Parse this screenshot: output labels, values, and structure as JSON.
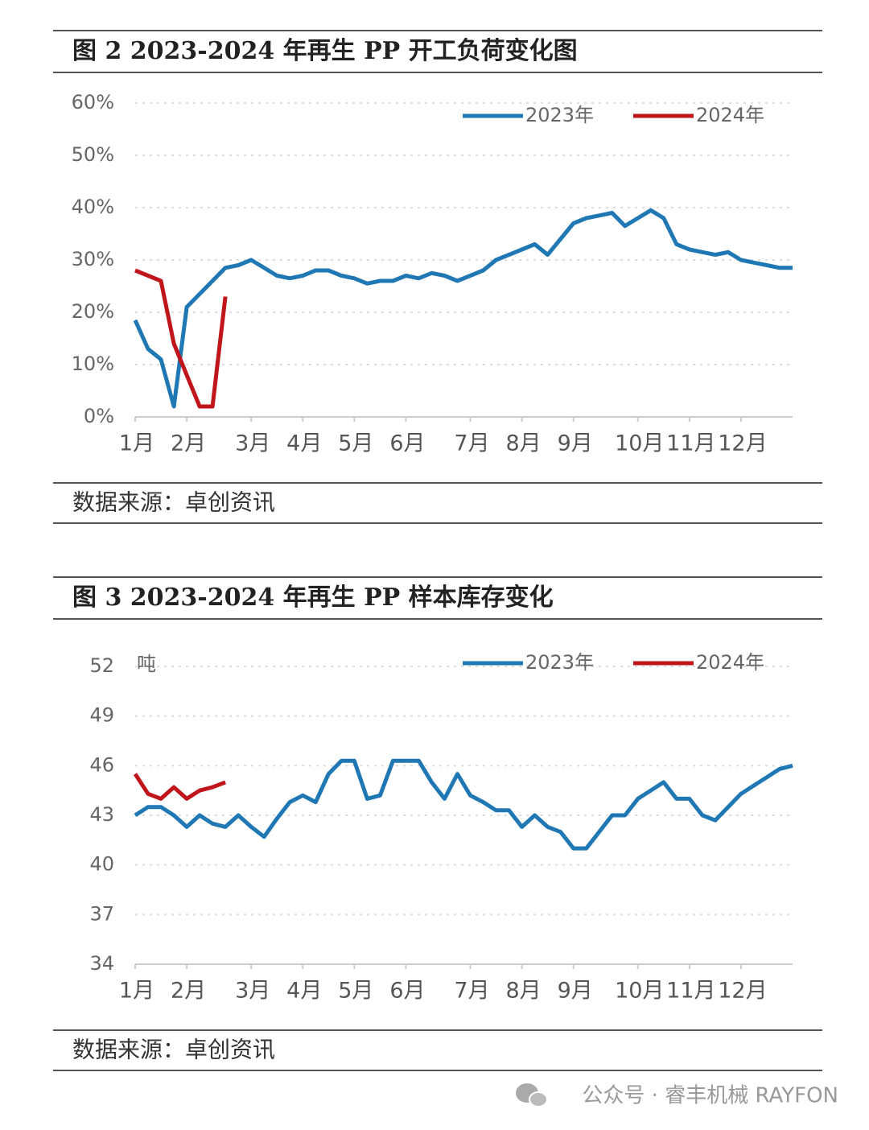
{
  "chart_data": [
    {
      "type": "line",
      "title": "图 2 2023-2024 年再生 PP 开工负荷变化图",
      "source": "数据来源：卓创资讯",
      "categories": [
        "1月",
        null,
        null,
        null,
        "2月",
        null,
        null,
        null,
        null,
        "3月",
        null,
        null,
        null,
        "4月",
        null,
        null,
        null,
        "5月",
        null,
        null,
        null,
        "6月",
        null,
        null,
        null,
        null,
        "7月",
        null,
        null,
        null,
        "8月",
        null,
        null,
        null,
        "9月",
        null,
        null,
        null,
        null,
        "10月",
        null,
        null,
        null,
        "11月",
        null,
        null,
        null,
        "12月",
        null,
        null,
        null,
        null
      ],
      "series": [
        {
          "name": "2023年",
          "color": "#1f77b4",
          "values": [
            18.5,
            13,
            11,
            2,
            21,
            23.5,
            26,
            28.5,
            29,
            30,
            28.5,
            27,
            26.5,
            27,
            28,
            28,
            27,
            26.5,
            25.5,
            26,
            26,
            27,
            26.5,
            27.5,
            27,
            26,
            27,
            28,
            30,
            31,
            32,
            33,
            31,
            34,
            37,
            38,
            38.5,
            39,
            36.5,
            38,
            39.5,
            38,
            33,
            32,
            31.5,
            31,
            31.5,
            30,
            29.5,
            29,
            28.5,
            28.5
          ]
        },
        {
          "name": "2024年",
          "color": "#c0161b",
          "values": [
            28,
            27,
            26,
            14,
            8,
            2,
            2,
            23,
            null,
            null,
            null,
            null,
            null,
            null,
            null,
            null,
            null,
            null,
            null,
            null,
            null,
            null,
            null,
            null,
            null,
            null,
            null,
            null,
            null,
            null,
            null,
            null,
            null,
            null,
            null,
            null,
            null,
            null,
            null,
            null,
            null,
            null,
            null,
            null,
            null,
            null,
            null,
            null,
            null,
            null,
            null,
            null
          ]
        }
      ],
      "ylim": [
        0,
        60
      ],
      "yticks": [
        {
          "value": 0,
          "label": "0%"
        },
        {
          "value": 10,
          "label": "10%"
        },
        {
          "value": 20,
          "label": "20%"
        },
        {
          "value": 30,
          "label": "30%"
        },
        {
          "value": 40,
          "label": "40%"
        },
        {
          "value": 50,
          "label": "50%"
        },
        {
          "value": 60,
          "label": "60%"
        }
      ],
      "grid": true,
      "legend": "upper right"
    },
    {
      "type": "line",
      "title": "图 3 2023-2024 年再生 PP 样本库存变化",
      "source": "数据来源：卓创资讯",
      "y_label": "吨",
      "categories": [
        "1月",
        null,
        null,
        null,
        "2月",
        null,
        null,
        null,
        null,
        "3月",
        null,
        null,
        null,
        "4月",
        null,
        null,
        null,
        "5月",
        null,
        null,
        null,
        "6月",
        null,
        null,
        null,
        null,
        "7月",
        null,
        null,
        null,
        "8月",
        null,
        null,
        null,
        "9月",
        null,
        null,
        null,
        null,
        "10月",
        null,
        null,
        null,
        "11月",
        null,
        null,
        null,
        "12月",
        null,
        null,
        null,
        null
      ],
      "series": [
        {
          "name": "2023年",
          "color": "#1f77b4",
          "values": [
            43,
            43.5,
            43.5,
            43,
            42.3,
            43,
            42.5,
            42.3,
            43,
            42.3,
            41.7,
            42.8,
            43.8,
            44.2,
            43.8,
            45.5,
            46.3,
            46.3,
            44,
            44.2,
            46.3,
            46.3,
            46.3,
            45,
            44,
            45.5,
            44.2,
            43.8,
            43.3,
            43.3,
            42.3,
            43,
            42.3,
            42,
            41,
            41,
            42,
            43,
            43,
            44,
            44.5,
            45,
            44,
            44,
            43,
            42.7,
            43.5,
            44.3,
            44.8,
            45.3,
            45.8,
            46
          ]
        },
        {
          "name": "2024年",
          "color": "#c0161b",
          "values": [
            45.5,
            44.3,
            44,
            44.7,
            44,
            44.5,
            44.7,
            45,
            null,
            null,
            null,
            null,
            null,
            null,
            null,
            null,
            null,
            null,
            null,
            null,
            null,
            null,
            null,
            null,
            null,
            null,
            null,
            null,
            null,
            null,
            null,
            null,
            null,
            null,
            null,
            null,
            null,
            null,
            null,
            null,
            null,
            null,
            null,
            null,
            null,
            null,
            null,
            null,
            null,
            null,
            null,
            null
          ]
        }
      ],
      "ylim": [
        34,
        52
      ],
      "yticks": [
        34,
        37,
        40,
        43,
        46,
        49,
        52
      ],
      "grid": true,
      "legend": "upper right"
    }
  ],
  "footer": "公众号 · 睿丰机械 RAYFON"
}
